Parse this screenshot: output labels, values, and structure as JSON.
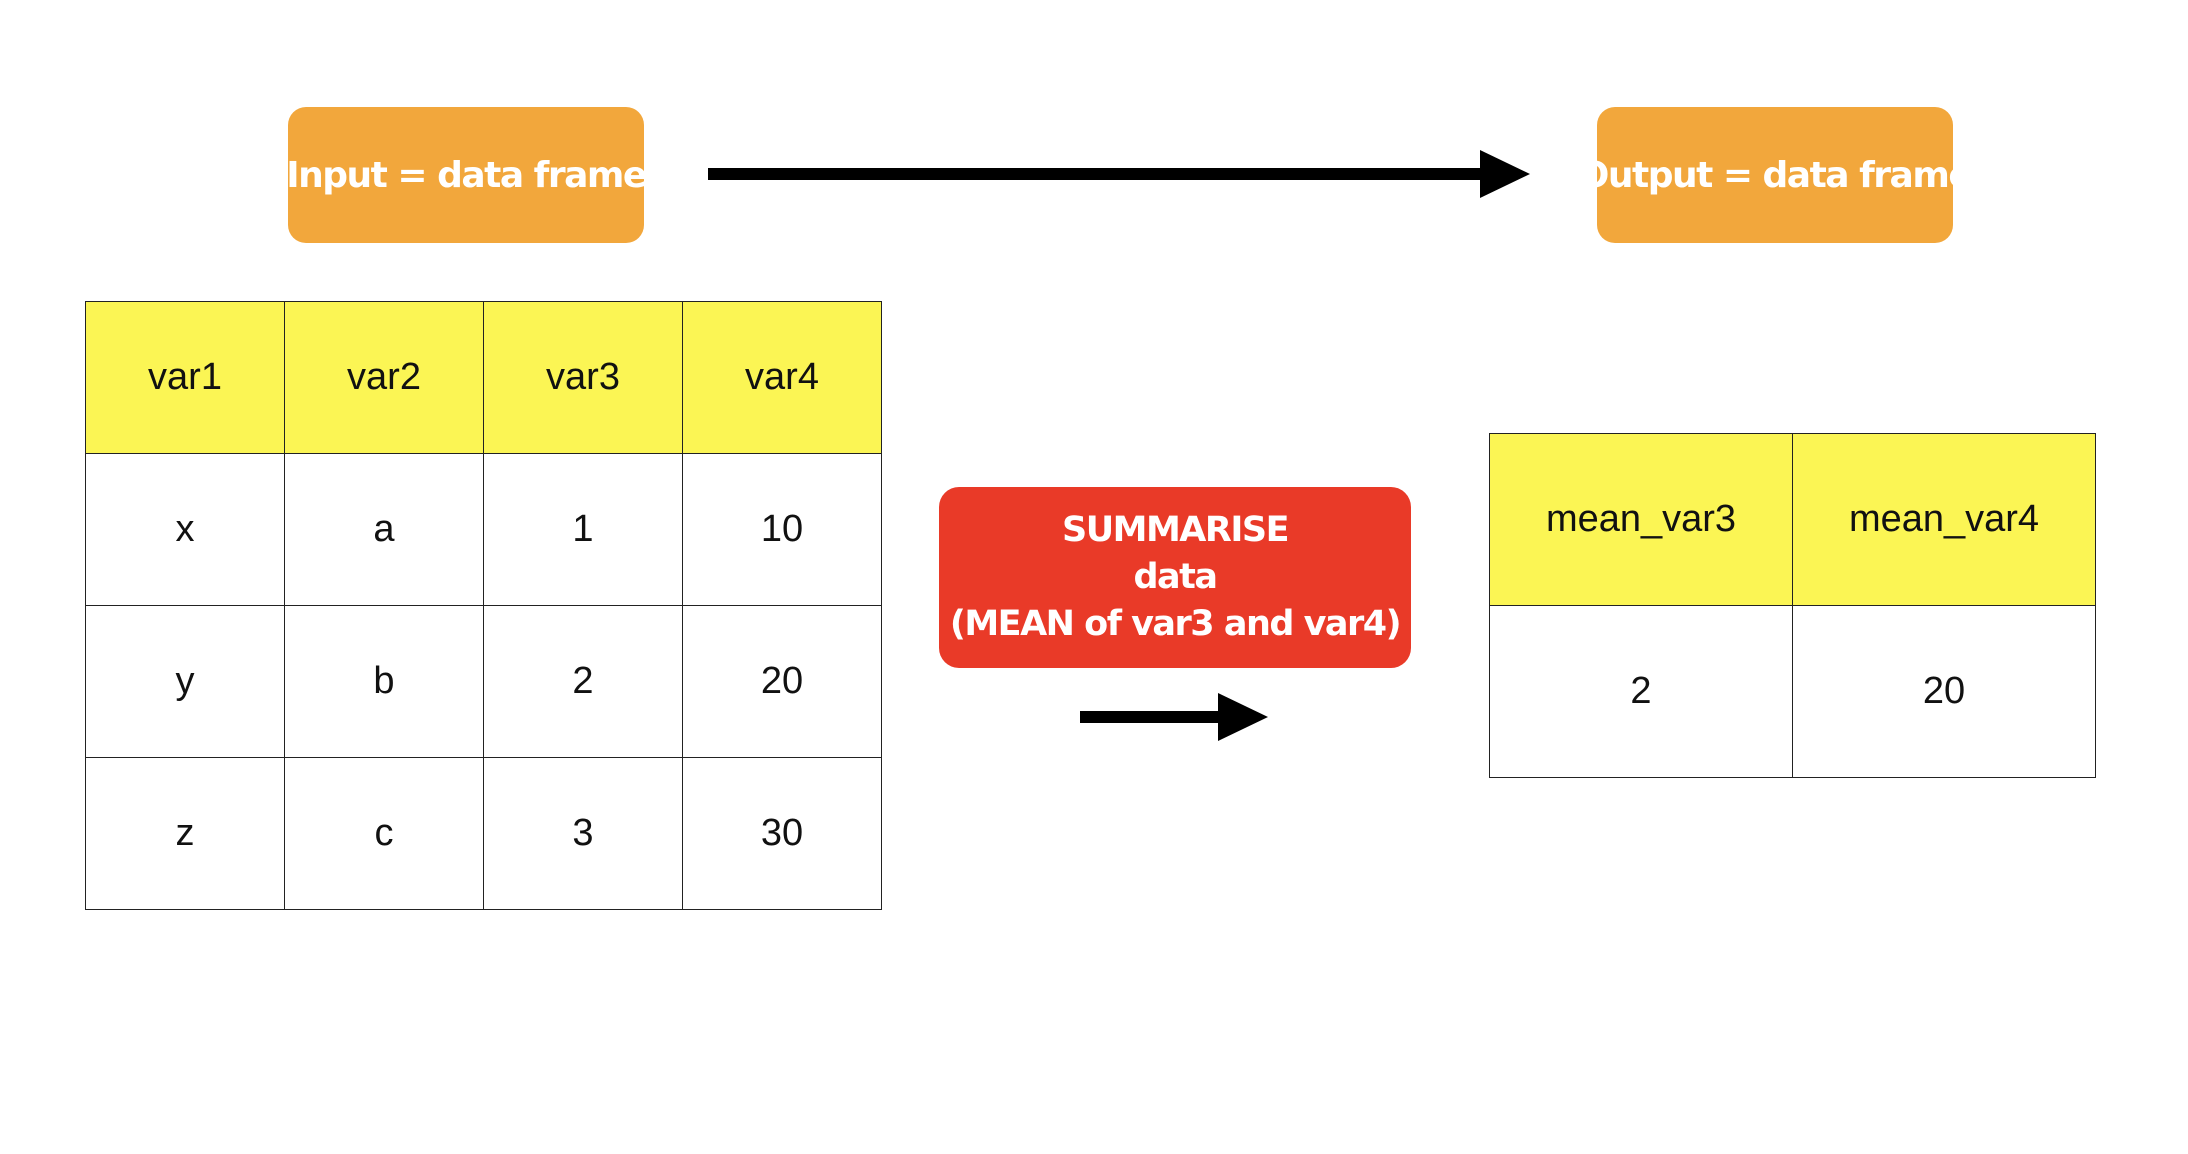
{
  "input_label": "Input = data frame",
  "output_label": "Output = data frame",
  "operation": {
    "line1": "SUMMARISE",
    "line2": "data",
    "line3": "(MEAN  of var3 and var4)"
  },
  "input_table": {
    "headers": [
      "var1",
      "var2",
      "var3",
      "var4"
    ],
    "rows": [
      [
        "x",
        "a",
        "1",
        "10"
      ],
      [
        "y",
        "b",
        "2",
        "20"
      ],
      [
        "z",
        "c",
        "3",
        "30"
      ]
    ]
  },
  "output_table": {
    "headers": [
      "mean_var3",
      "mean_var4"
    ],
    "rows": [
      [
        "2",
        "20"
      ]
    ]
  },
  "colors": {
    "label_orange": "#f2a73c",
    "operation_red": "#e93a28",
    "header_yellow": "#fbf554",
    "arrow": "#000000"
  }
}
